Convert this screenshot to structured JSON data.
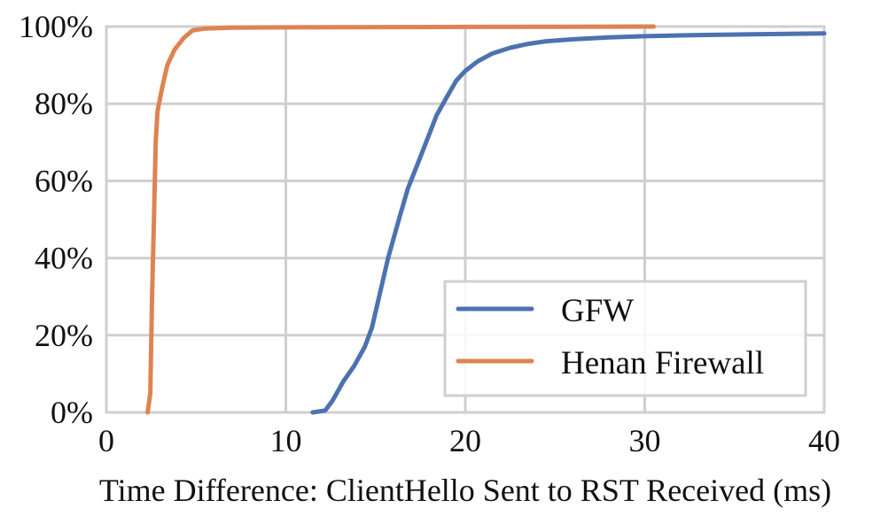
{
  "chart_data": {
    "type": "line",
    "title": "",
    "xlabel": "Time Difference: ClientHello Sent to RST Received (ms)",
    "ylabel": "",
    "xlim": [
      0,
      40
    ],
    "ylim": [
      0,
      100
    ],
    "x_ticks": [
      0,
      10,
      20,
      30,
      40
    ],
    "x_tick_labels": [
      "0",
      "10",
      "20",
      "30",
      "40"
    ],
    "y_ticks": [
      0,
      20,
      40,
      60,
      80,
      100
    ],
    "y_tick_labels": [
      "0%",
      "20%",
      "40%",
      "60%",
      "80%",
      "100%"
    ],
    "grid": true,
    "legend_position": "bottom-right",
    "series": [
      {
        "name": "GFW",
        "color": "#4c72b0",
        "points": [
          [
            11.5,
            0
          ],
          [
            12.2,
            0.5
          ],
          [
            12.6,
            3
          ],
          [
            13.2,
            8
          ],
          [
            13.8,
            12
          ],
          [
            14.4,
            17
          ],
          [
            14.8,
            22
          ],
          [
            15.2,
            30
          ],
          [
            15.7,
            40
          ],
          [
            16.3,
            50
          ],
          [
            16.8,
            58
          ],
          [
            17.4,
            65
          ],
          [
            17.9,
            71
          ],
          [
            18.4,
            77
          ],
          [
            19.0,
            82
          ],
          [
            19.5,
            86
          ],
          [
            20.0,
            88.5
          ],
          [
            20.7,
            91
          ],
          [
            21.5,
            93
          ],
          [
            22.5,
            94.5
          ],
          [
            23.5,
            95.5
          ],
          [
            24.5,
            96.2
          ],
          [
            26,
            96.7
          ],
          [
            28,
            97.2
          ],
          [
            30,
            97.5
          ],
          [
            33,
            97.8
          ],
          [
            36,
            98.0
          ],
          [
            40,
            98.2
          ]
        ]
      },
      {
        "name": "Henan Firewall",
        "color": "#dd8452",
        "points": [
          [
            2.3,
            0
          ],
          [
            2.45,
            5
          ],
          [
            2.55,
            30
          ],
          [
            2.65,
            50
          ],
          [
            2.75,
            70
          ],
          [
            2.85,
            78
          ],
          [
            3.1,
            84
          ],
          [
            3.4,
            90
          ],
          [
            3.8,
            94
          ],
          [
            4.3,
            97
          ],
          [
            4.8,
            99
          ],
          [
            5.5,
            99.5
          ],
          [
            7,
            99.7
          ],
          [
            10,
            99.8
          ],
          [
            20,
            99.9
          ],
          [
            30.5,
            100
          ]
        ]
      }
    ]
  }
}
